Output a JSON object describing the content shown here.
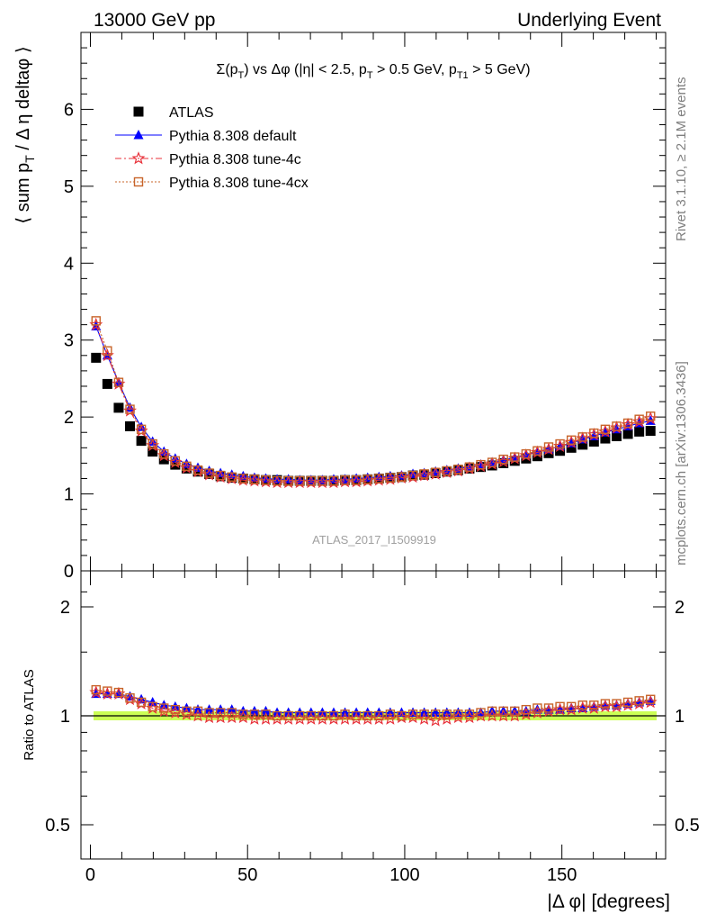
{
  "header": {
    "left": "13000 GeV pp",
    "right": "Underlying Event",
    "plot_title": "Σ(p_T) vs Δφ (|η| < 2.5, p_T > 0.5 GeV, p_T1 > 5 GeV)"
  },
  "side": {
    "rivet": "Rivet 3.1.10, ≥ 2.1M events",
    "mcplots": "mcplots.cern.ch [arXiv:1306.3436]"
  },
  "watermark": "ATLAS_2017_I1509919",
  "colors": {
    "atlas": "#000000",
    "default": "#0000ff",
    "tune4c": "#e8313a",
    "tune4cx": "#c8642a",
    "band": "#ccff55"
  },
  "chart_data": [
    {
      "type": "scatter",
      "title": "Σ(p_T) vs Δφ (|η| < 2.5, p_T > 0.5 GeV, p_T1 > 5 GeV)",
      "ylabel": "⟨ sum p_T / Δ η deltaφ ⟩",
      "xlim": [
        -3,
        183
      ],
      "ylim": [
        0,
        7
      ],
      "yticks": [
        "0",
        "1",
        "2",
        "3",
        "4",
        "5",
        "6"
      ],
      "x": [
        1.8,
        5.4,
        9,
        12.6,
        16.2,
        19.8,
        23.4,
        27,
        30.6,
        34.2,
        37.8,
        41.4,
        45,
        48.6,
        52.2,
        55.8,
        59.4,
        63,
        66.6,
        70.2,
        73.8,
        77.4,
        81,
        84.6,
        88.2,
        91.8,
        95.4,
        99,
        102.6,
        106.2,
        109.8,
        113.4,
        117,
        120.6,
        124.2,
        127.8,
        131.4,
        135,
        138.6,
        142.2,
        145.8,
        149.4,
        153,
        156.6,
        160.2,
        163.8,
        167.4,
        171,
        174.6,
        178.2
      ],
      "series": [
        {
          "name": "ATLAS",
          "values": [
            2.77,
            2.43,
            2.12,
            1.88,
            1.69,
            1.55,
            1.45,
            1.38,
            1.33,
            1.29,
            1.26,
            1.23,
            1.21,
            1.2,
            1.19,
            1.18,
            1.18,
            1.17,
            1.17,
            1.17,
            1.17,
            1.17,
            1.18,
            1.18,
            1.19,
            1.2,
            1.21,
            1.22,
            1.24,
            1.25,
            1.27,
            1.29,
            1.31,
            1.33,
            1.35,
            1.37,
            1.4,
            1.43,
            1.46,
            1.49,
            1.53,
            1.56,
            1.6,
            1.64,
            1.68,
            1.72,
            1.75,
            1.78,
            1.81,
            1.82
          ]
        },
        {
          "name": "Pythia 8.308 default",
          "values": [
            3.18,
            2.8,
            2.45,
            2.12,
            1.87,
            1.68,
            1.55,
            1.46,
            1.39,
            1.34,
            1.3,
            1.27,
            1.25,
            1.23,
            1.21,
            1.2,
            1.19,
            1.19,
            1.18,
            1.18,
            1.18,
            1.19,
            1.19,
            1.2,
            1.21,
            1.22,
            1.23,
            1.24,
            1.26,
            1.27,
            1.29,
            1.31,
            1.33,
            1.35,
            1.38,
            1.41,
            1.44,
            1.47,
            1.51,
            1.55,
            1.58,
            1.62,
            1.66,
            1.71,
            1.75,
            1.8,
            1.84,
            1.88,
            1.92,
            1.95
          ]
        },
        {
          "name": "Pythia 8.308 tune-4c",
          "values": [
            3.2,
            2.8,
            2.43,
            2.08,
            1.82,
            1.63,
            1.5,
            1.41,
            1.34,
            1.29,
            1.25,
            1.22,
            1.2,
            1.18,
            1.17,
            1.16,
            1.15,
            1.15,
            1.15,
            1.15,
            1.15,
            1.15,
            1.16,
            1.16,
            1.17,
            1.18,
            1.19,
            1.21,
            1.22,
            1.24,
            1.26,
            1.28,
            1.3,
            1.33,
            1.36,
            1.39,
            1.42,
            1.46,
            1.5,
            1.54,
            1.58,
            1.62,
            1.67,
            1.72,
            1.77,
            1.81,
            1.86,
            1.9,
            1.94,
            1.98
          ]
        },
        {
          "name": "Pythia 8.308 tune-4cx",
          "values": [
            3.25,
            2.86,
            2.45,
            2.1,
            1.84,
            1.65,
            1.52,
            1.43,
            1.36,
            1.31,
            1.27,
            1.24,
            1.22,
            1.2,
            1.19,
            1.18,
            1.17,
            1.17,
            1.17,
            1.17,
            1.17,
            1.17,
            1.18,
            1.18,
            1.19,
            1.2,
            1.21,
            1.22,
            1.24,
            1.26,
            1.28,
            1.3,
            1.32,
            1.35,
            1.38,
            1.41,
            1.45,
            1.48,
            1.52,
            1.56,
            1.61,
            1.65,
            1.7,
            1.74,
            1.79,
            1.84,
            1.88,
            1.92,
            1.97,
            2.01
          ]
        }
      ]
    },
    {
      "type": "scatter",
      "ylabel": "Ratio to ATLAS",
      "xlabel": "|Δ φ| [degrees]",
      "xlim": [
        -3,
        183
      ],
      "ylim": [
        0.4,
        2.35
      ],
      "yticks": [
        "0.5",
        "1",
        "2"
      ],
      "xticks": [
        "0",
        "50",
        "100",
        "150"
      ],
      "x": [
        1.8,
        5.4,
        9,
        12.6,
        16.2,
        19.8,
        23.4,
        27,
        30.6,
        34.2,
        37.8,
        41.4,
        45,
        48.6,
        52.2,
        55.8,
        59.4,
        63,
        66.6,
        70.2,
        73.8,
        77.4,
        81,
        84.6,
        88.2,
        91.8,
        95.4,
        99,
        102.6,
        106.2,
        109.8,
        113.4,
        117,
        120.6,
        124.2,
        127.8,
        131.4,
        135,
        138.6,
        142.2,
        145.8,
        149.4,
        153,
        156.6,
        160.2,
        163.8,
        167.4,
        171,
        174.6,
        178.2
      ],
      "series": [
        {
          "name": "Pythia 8.308 default",
          "values": [
            1.15,
            1.15,
            1.15,
            1.13,
            1.11,
            1.09,
            1.07,
            1.06,
            1.05,
            1.04,
            1.04,
            1.04,
            1.04,
            1.03,
            1.03,
            1.03,
            1.02,
            1.02,
            1.02,
            1.02,
            1.02,
            1.02,
            1.02,
            1.02,
            1.02,
            1.02,
            1.02,
            1.02,
            1.02,
            1.02,
            1.02,
            1.02,
            1.02,
            1.02,
            1.02,
            1.03,
            1.03,
            1.03,
            1.03,
            1.04,
            1.04,
            1.04,
            1.05,
            1.05,
            1.06,
            1.07,
            1.07,
            1.08,
            1.09,
            1.1
          ]
        },
        {
          "name": "Pythia 8.308 tune-4c",
          "values": [
            1.16,
            1.15,
            1.15,
            1.11,
            1.08,
            1.05,
            1.03,
            1.02,
            1.01,
            1.0,
            0.99,
            0.99,
            0.99,
            0.99,
            0.98,
            0.98,
            0.98,
            0.98,
            0.98,
            0.98,
            0.98,
            0.98,
            0.98,
            0.98,
            0.98,
            0.98,
            0.98,
            0.99,
            0.99,
            0.98,
            0.97,
            0.98,
            0.99,
            0.99,
            1.0,
            1.0,
            1.0,
            1.0,
            1.01,
            1.02,
            1.03,
            1.04,
            1.04,
            1.05,
            1.05,
            1.06,
            1.06,
            1.07,
            1.08,
            1.09
          ]
        },
        {
          "name": "Pythia 8.308 tune-4cx",
          "values": [
            1.18,
            1.17,
            1.16,
            1.12,
            1.09,
            1.06,
            1.05,
            1.04,
            1.03,
            1.03,
            1.02,
            1.02,
            1.02,
            1.01,
            1.01,
            1.01,
            1.0,
            1.0,
            1.0,
            1.0,
            1.0,
            1.0,
            1.01,
            1.0,
            1.0,
            1.0,
            1.01,
            1.0,
            1.01,
            1.01,
            1.01,
            1.01,
            1.01,
            1.01,
            1.02,
            1.03,
            1.03,
            1.03,
            1.04,
            1.05,
            1.05,
            1.06,
            1.06,
            1.07,
            1.07,
            1.08,
            1.08,
            1.09,
            1.1,
            1.11
          ]
        }
      ]
    }
  ]
}
